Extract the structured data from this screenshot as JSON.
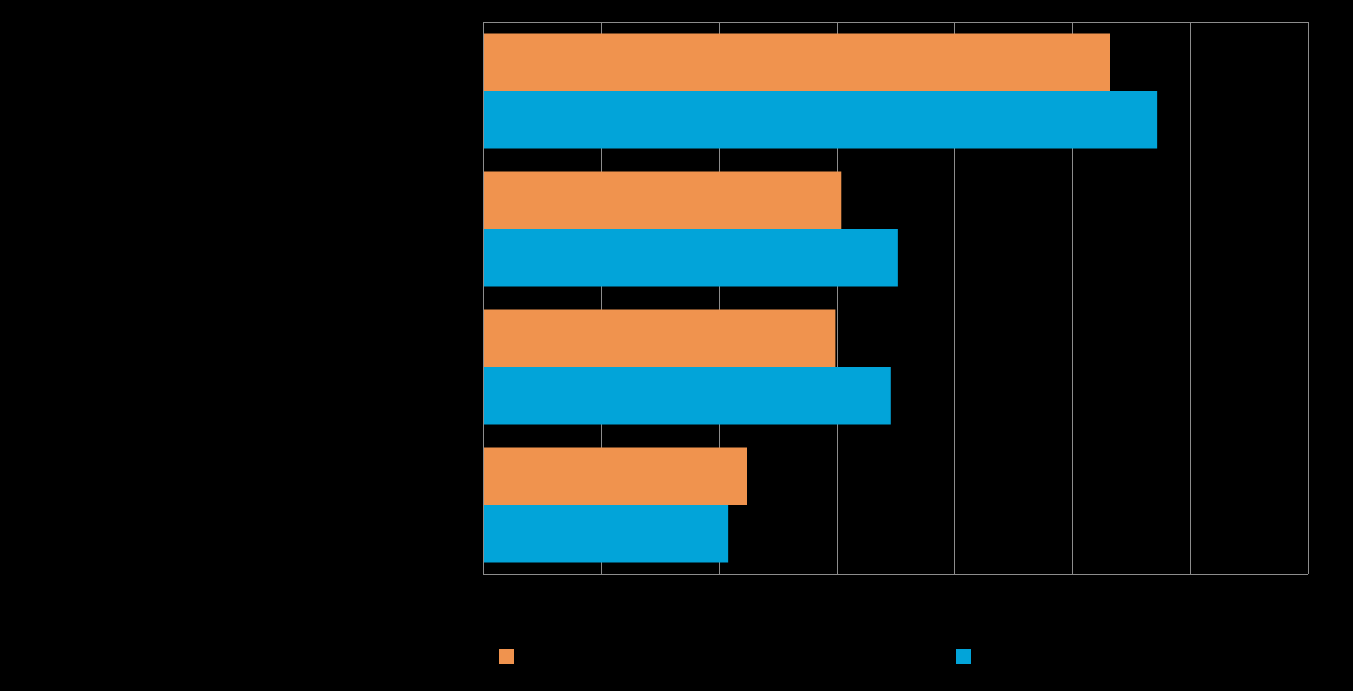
{
  "chart_data": {
    "type": "bar",
    "orientation": "horizontal",
    "categories": [
      "",
      "",
      "",
      ""
    ],
    "series": [
      {
        "values": [
          53.2,
          30.4,
          29.9,
          22.4
        ],
        "color": "#F0934E"
      },
      {
        "values": [
          57.2,
          35.2,
          34.6,
          20.8
        ],
        "color": "#02A4D9"
      }
    ],
    "xlim": [
      0,
      70
    ],
    "x_tick_step": 10,
    "grid": true,
    "legend": "bottom",
    "background": "#000000",
    "grid_color": "#8C8C8C"
  }
}
